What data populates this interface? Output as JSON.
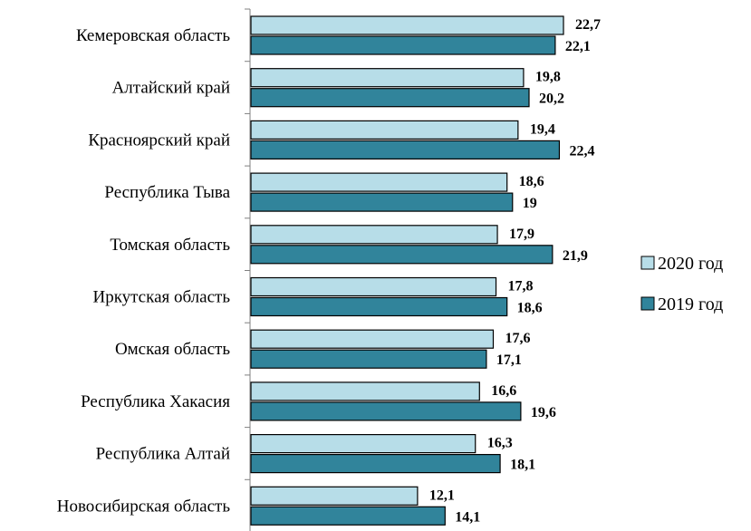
{
  "chart_data": {
    "type": "bar",
    "orientation": "horizontal",
    "categories": [
      "Кемеровская область",
      "Алтайский край",
      "Красноярский край",
      "Республика Тыва",
      "Томская область",
      "Иркутская область",
      "Омская область",
      "Республика Хакасия",
      "Республика Алтай",
      "Новосибирская область"
    ],
    "series": [
      {
        "name": "2020 год",
        "color": "#b7dde8",
        "values": [
          22.7,
          19.8,
          19.4,
          18.6,
          17.9,
          17.8,
          17.6,
          16.6,
          16.3,
          12.1
        ],
        "labels": [
          "22,7",
          "19,8",
          "19,4",
          "18,6",
          "17,9",
          "17,8",
          "17,6",
          "16,6",
          "16,3",
          "12,1"
        ]
      },
      {
        "name": "2019 год",
        "color": "#31849b",
        "values": [
          22.1,
          20.2,
          22.4,
          19,
          21.9,
          18.6,
          17.1,
          19.6,
          18.1,
          14.1
        ],
        "labels": [
          "22,1",
          "20,2",
          "22,4",
          "19",
          "21,9",
          "18,6",
          "17,1",
          "19,6",
          "18,1",
          "14,1"
        ]
      }
    ],
    "xlim": [
      0,
      23
    ],
    "grid": false,
    "legend_position": "right"
  }
}
